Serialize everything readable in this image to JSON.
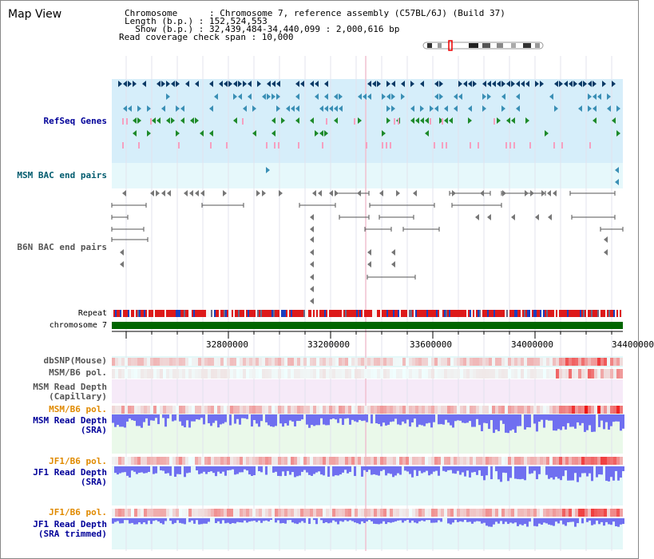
{
  "title": "Map View",
  "info": {
    "line1": "Chromosome      : Chromosome 7, reference assembly (C57BL/6J) (Build 37)",
    "line2": "Length (b.p.) : 152,524,553",
    "line3": "  Show (b.p.) : 32,439,484-34,440,099 : 2,000,616 bp",
    "line4": "Read coverage check span : 10,000"
  },
  "tracks": {
    "refseq": "RefSeq Genes",
    "msm_bac": "MSM BAC end pairs",
    "b6n_bac": "B6N BAC end pairs",
    "repeat": "Repeat",
    "chromosome": "chromosome 7",
    "dbsnp": "dbSNP(Mouse)",
    "msm_b6_pol_1": "MSM/B6 pol.",
    "msm_read_cap_1": "MSM Read Depth",
    "msm_read_cap_2": "(Capillary)",
    "msm_b6_pol_2": "MSM/B6 pol.",
    "msm_read_sra_1": "MSM Read Depth",
    "msm_read_sra_2": "(SRA)",
    "jf1_b6_pol_1": "JF1/B6 pol.",
    "jf1_read_sra_1": "JF1 Read Depth",
    "jf1_read_sra_2": "(SRA)",
    "jf1_b6_pol_2": "JF1/B6 pol.",
    "jf1_read_trim_1": "JF1 Read Depth",
    "jf1_read_trim_2": "(SRA trimmed)"
  },
  "axis": {
    "ticks": [
      "32800000",
      "33200000",
      "33600000",
      "34000000",
      "34400000"
    ]
  },
  "colors": {
    "refseq_bg": "#d6eefa",
    "msm_bg": "#e6f8fb",
    "cap_bg": "#f6eaf8",
    "sra_bg": "#eaf9ea",
    "jf1_bg": "#e4f8f8",
    "label_blue": "#000099",
    "label_teal": "#005b6e",
    "label_orange": "#e08a00",
    "chrom_green": "#006600",
    "depth_blue": "#6f6ff0"
  }
}
